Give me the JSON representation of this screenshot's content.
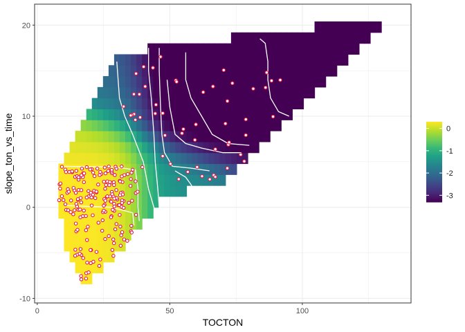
{
  "chart_data": {
    "type": "heatmap",
    "title": "",
    "xlabel": "TOCTON",
    "ylabel": "slope_ton_vs_time",
    "xlim": [
      -1,
      141
    ],
    "ylim": [
      -10.5,
      22.3
    ],
    "x_ticks": [
      0,
      50,
      100
    ],
    "y_ticks": [
      -10,
      0,
      10,
      20
    ],
    "grid": true,
    "legend": {
      "position": "right",
      "min": -3.3,
      "max": 0.3,
      "ticks": [
        0,
        -1,
        -2,
        -3
      ],
      "colormap": "viridis"
    },
    "surface": "Predicted values shown as a filled grid over the convex region of the observations, with contour lines every 0.5 units.",
    "contour_levels": [
      -0.5,
      -1,
      -1.5,
      -2,
      -2.5,
      -3
    ],
    "points": {
      "fill": "#ffffff",
      "stroke": "#e6194b",
      "n": 260
    },
    "colors": {
      "viridis": [
        "#440154",
        "#482878",
        "#3e4989",
        "#31688e",
        "#26828e",
        "#1f9e89",
        "#35b779",
        "#6ece58",
        "#b5de2b",
        "#fde725"
      ],
      "panel_border": "#333333",
      "grid": "#ebebeb",
      "contour": "#ffffff"
    }
  }
}
